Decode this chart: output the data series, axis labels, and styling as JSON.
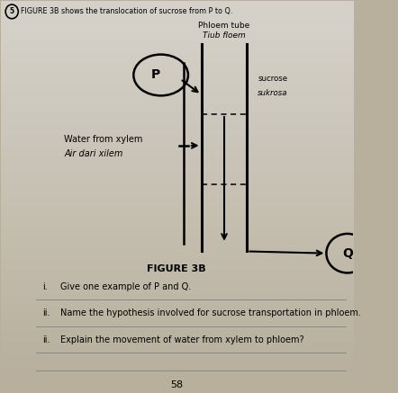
{
  "background_top": "#b8af9c",
  "background_bottom": "#d0cdc5",
  "title_text": "FIGURE 3B shows the translocation of sucrose from P to Q.",
  "figure_label": "FIGURE 3B",
  "phloem_label_1": "Phloem tube",
  "phloem_label_2": "Tiub floem",
  "sucrose_label_1": "sucrose",
  "sucrose_label_2": "sukrosa",
  "water_label_1": "Water from xylem",
  "water_label_2": "Air dari xilem",
  "circle_P_label": "P",
  "circle_Q_label": "Q",
  "page_number": "58",
  "fig_number_circle": "5",
  "question_i_num": "i.",
  "question_i_text": "Give one example of P and Q.",
  "question_ii_num": "ii.",
  "question_ii_text": "Name the hypothesis involved for sucrose transportation in phloem.",
  "question_iii_num": "ii.",
  "question_iii_text": "Explain the movement of water from xylem to phloem?"
}
